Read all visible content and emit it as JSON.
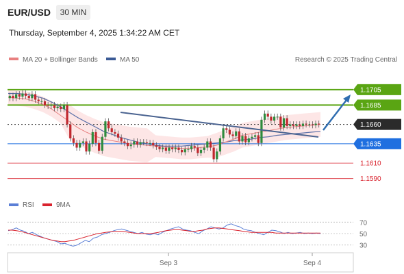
{
  "header": {
    "symbol": "EUR/USD",
    "timeframe": "30 MIN"
  },
  "datetime": "Thursday, September 4, 2025 1:34:22 AM CET",
  "legend": {
    "ma20": "MA 20 + Bollinger Bands",
    "ma50": "MA 50",
    "copyright": "Research © 2025 Trading Central"
  },
  "colors": {
    "resistance": "#5aa513",
    "current": "#2b2b2b",
    "support_blue": "#1f6fe0",
    "support_red": "#d9232e",
    "ma20": "#e88080",
    "ma50": "#5a6fa8",
    "bollinger_fill": "#fde0e0",
    "trendline": "#4a6390",
    "arrow": "#2f6db0",
    "rsi": "#5b7fd6",
    "rsi_ma": "#d9232e",
    "candle_up": "#2e8b3d",
    "candle_down": "#c0282e"
  },
  "chart_data": {
    "type": "candlestick",
    "price_levels": [
      {
        "label": "1.1705",
        "value": 1.1705,
        "role": "resistance"
      },
      {
        "label": "1.1685",
        "value": 1.1685,
        "role": "resistance"
      },
      {
        "label": "1.1660",
        "value": 1.166,
        "role": "current"
      },
      {
        "label": "1.1635",
        "value": 1.1635,
        "role": "support"
      },
      {
        "label": "1.1610",
        "value": 1.161,
        "role": "support"
      },
      {
        "label": "1.1590",
        "value": 1.159,
        "role": "support"
      }
    ],
    "ylim": [
      1.1572,
      1.1727
    ],
    "x_labels": [
      "Sep 3",
      "Sep 4"
    ],
    "candles_close": [
      1.1697,
      1.1694,
      1.1699,
      1.1696,
      1.17,
      1.1697,
      1.1694,
      1.1699,
      1.1692,
      1.169,
      1.169,
      1.1685,
      1.1684,
      1.1685,
      1.1681,
      1.1683,
      1.168,
      1.1685,
      1.166,
      1.1642,
      1.1636,
      1.163,
      1.1636,
      1.1638,
      1.1625,
      1.1635,
      1.165,
      1.1636,
      1.1626,
      1.1644,
      1.1664,
      1.1655,
      1.165,
      1.1648,
      1.1643,
      1.1638,
      1.1636,
      1.1632,
      1.1634,
      1.1638,
      1.1634,
      1.1637,
      1.1637,
      1.1636,
      1.1636,
      1.1633,
      1.1631,
      1.1628,
      1.163,
      1.1626,
      1.163,
      1.1628,
      1.163,
      1.1627,
      1.1624,
      1.1628,
      1.1628,
      1.1632,
      1.163,
      1.1623,
      1.1627,
      1.163,
      1.1638,
      1.163,
      1.1615,
      1.1625,
      1.1642,
      1.1655,
      1.1653,
      1.1647,
      1.1645,
      1.1651,
      1.1638,
      1.1645,
      1.1637,
      1.1642,
      1.1644,
      1.1646,
      1.1636,
      1.1666,
      1.1674,
      1.167,
      1.1665,
      1.167,
      1.167,
      1.1656,
      1.1668,
      1.1658,
      1.166,
      1.1658,
      1.166,
      1.1658,
      1.1661,
      1.166,
      1.166,
      1.1659,
      1.1661,
      1.166
    ],
    "ma20_values": [
      1.1695,
      1.1694,
      1.1693,
      1.169,
      1.1686,
      1.168,
      1.1672,
      1.1664,
      1.1656,
      1.165,
      1.1645,
      1.1641,
      1.1639,
      1.1637,
      1.1635,
      1.1634,
      1.1633,
      1.1632,
      1.1631,
      1.163,
      1.1629,
      1.1629,
      1.163,
      1.1631,
      1.1633,
      1.1637,
      1.1641,
      1.1646,
      1.1648,
      1.165,
      1.1652,
      1.1654,
      1.1656,
      1.1657,
      1.1658,
      1.1659,
      1.166
    ],
    "ma50_values": [
      1.17,
      1.17,
      1.1699,
      1.1697,
      1.1694,
      1.1689,
      1.1683,
      1.1676,
      1.1669,
      1.1663,
      1.1657,
      1.1651,
      1.1647,
      1.1643,
      1.164,
      1.1637,
      1.1635,
      1.1633,
      1.1632,
      1.1632,
      1.1632,
      1.1633,
      1.1634,
      1.1635,
      1.1636,
      1.1637,
      1.1639,
      1.164,
      1.1641,
      1.1643,
      1.1644,
      1.1646,
      1.1647,
      1.1648,
      1.1649,
      1.165,
      1.1651
    ],
    "rsi": {
      "legend": [
        "RSI",
        "9MA"
      ],
      "levels": [
        70,
        50,
        30
      ],
      "level_labels": [
        "70",
        "50",
        "30"
      ],
      "ylim": [
        20,
        80
      ],
      "values": [
        55,
        57,
        60,
        56,
        54,
        50,
        52,
        48,
        45,
        42,
        40,
        38,
        36,
        32,
        33,
        30,
        28,
        30,
        34,
        38,
        36,
        42,
        44,
        48,
        50,
        52,
        55,
        57,
        58,
        56,
        54,
        52,
        50,
        52,
        49,
        48,
        50,
        48,
        52,
        55,
        58,
        60,
        62,
        58,
        56,
        55,
        52,
        50,
        55,
        58,
        62,
        60,
        58,
        60,
        65,
        67,
        64,
        62,
        58,
        56,
        55,
        52,
        50,
        48,
        52,
        56,
        55,
        53,
        50,
        52,
        50,
        51,
        52,
        50,
        51,
        50,
        51,
        50
      ],
      "ma_values": [
        56,
        56,
        55,
        54,
        52,
        50,
        48,
        46,
        44,
        42,
        40,
        38,
        37,
        36,
        36,
        37,
        38,
        40,
        42,
        44,
        46,
        48,
        50,
        51,
        52,
        53,
        54,
        54,
        54,
        53,
        52,
        51,
        50,
        50,
        50,
        50,
        51,
        52,
        54,
        55,
        56,
        57,
        57,
        56,
        55,
        54,
        54,
        55,
        56,
        58,
        59,
        60,
        60,
        59,
        58,
        57,
        56,
        55,
        54,
        53,
        52,
        52,
        52,
        52,
        52,
        52,
        51,
        51,
        51,
        51,
        51,
        51,
        51,
        51,
        51,
        51,
        51,
        51
      ]
    }
  }
}
